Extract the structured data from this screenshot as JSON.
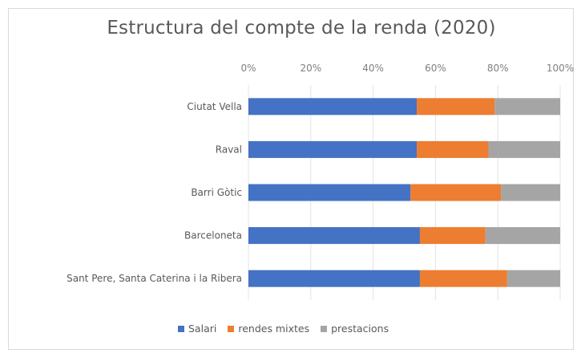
{
  "chart_data": {
    "type": "bar",
    "orientation": "horizontal",
    "stacked": "percent",
    "title": "Estructura del compte de la renda (2020)",
    "xlabel": "",
    "ylabel": "",
    "xlim": [
      0,
      100
    ],
    "x_ticks": [
      "0%",
      "20%",
      "40%",
      "60%",
      "80%",
      "100%"
    ],
    "x_tick_values": [
      0,
      20,
      40,
      60,
      80,
      100
    ],
    "x_axis_position": "top",
    "grid": true,
    "legend_position": "bottom",
    "categories": [
      "Ciutat Vella",
      "Raval",
      "Barri Gòtic",
      "Barceloneta",
      "Sant Pere, Santa Caterina i la Ribera"
    ],
    "series": [
      {
        "name": "Salari",
        "color": "#4472c4",
        "values": [
          54,
          54,
          52,
          55,
          55
        ]
      },
      {
        "name": "rendes mixtes",
        "color": "#ed7d31",
        "values": [
          25,
          23,
          29,
          21,
          28
        ]
      },
      {
        "name": "prestacions",
        "color": "#a5a5a5",
        "values": [
          21,
          23,
          19,
          24,
          17
        ]
      }
    ]
  }
}
